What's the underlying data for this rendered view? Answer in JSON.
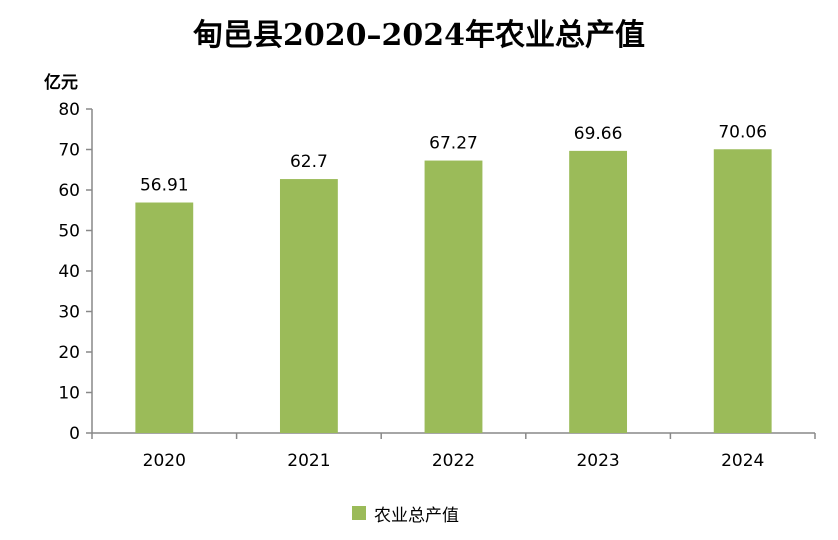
{
  "chart_data": {
    "type": "bar",
    "title": "甸邑县2020–2024年农业总产值",
    "ylabel": "亿元",
    "xlabel": "",
    "categories": [
      "2020",
      "2021",
      "2022",
      "2023",
      "2024"
    ],
    "series": [
      {
        "name": "农业总产值",
        "values": [
          56.91,
          62.7,
          67.27,
          69.66,
          70.06
        ],
        "value_labels": [
          "56.91",
          "62.7",
          "67.27",
          "69.66",
          "70.06"
        ],
        "color": "#9bbb59"
      }
    ],
    "ylim": [
      0,
      80
    ],
    "yticks": [
      "0",
      "10",
      "20",
      "30",
      "40",
      "50",
      "60",
      "70",
      "80"
    ],
    "grid": false,
    "legend_position": "bottom-center"
  }
}
